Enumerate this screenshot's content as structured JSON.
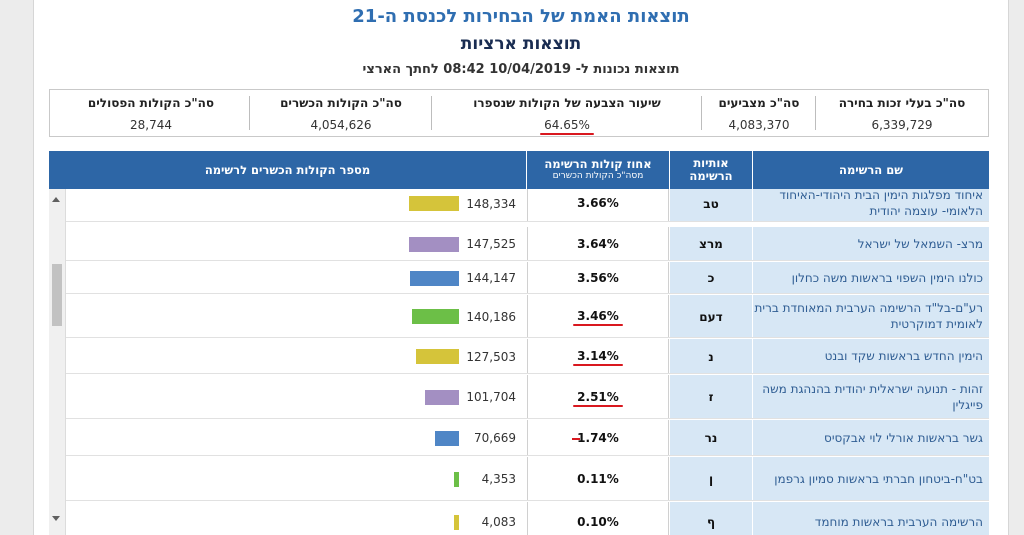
{
  "header": {
    "title": "תוצאות האמת של הבחירות לכנסת ה-21",
    "subtitle": "תוצאות ארציות",
    "updated": "תוצאות נכונות ל- 10/04/2019 08:42 לחתך הארצי"
  },
  "summary": {
    "eligible_label": "סה\"כ בעלי זכות בחירה",
    "eligible_value": "6,339,729",
    "voters_label": "סה\"כ מצביעים",
    "voters_value": "4,083,370",
    "turnout_label": "שיעור הצבעה של הקולות שנספרו",
    "turnout_value": "64.65%",
    "valid_label": "סה\"כ הקולות הכשרים",
    "valid_value": "4,054,626",
    "invalid_label": "סה\"כ הקולות הפסולים",
    "invalid_value": "28,744"
  },
  "table": {
    "col_name": "שם הרשימה",
    "col_letters": "אותיות הרשימה",
    "col_pct": "אחוז קולות הרשימה",
    "col_pct_sub": "מסה\"כ הקולות הכשרים",
    "col_votes": "מספר הקולות הכשרים לרשימה",
    "max_votes": 148334,
    "rows": [
      {
        "name": "איחוד מפלגות הימין הבית היהודי-האיחוד הלאומי- עוצמה יהודית",
        "letters": "טב",
        "pct": "3.66%",
        "votes": "148,334",
        "votes_num": 148334,
        "color": "#d5c43a",
        "underline": false,
        "dash": false
      },
      {
        "name": "מרצ- השמאל של ישראל",
        "letters": "מרצ",
        "pct": "3.64%",
        "votes": "147,525",
        "votes_num": 147525,
        "color": "#a38fc2",
        "underline": false,
        "dash": false
      },
      {
        "name": "כולנו הימין השפוי בראשות משה כחלון",
        "letters": "כ",
        "pct": "3.56%",
        "votes": "144,147",
        "votes_num": 144147,
        "color": "#4f86c6",
        "underline": false,
        "dash": false
      },
      {
        "name": "רע\"ם-בל\"ד הרשימה הערבית המאוחדת ברית לאומית דמוקרטית",
        "letters": "דעם",
        "pct": "3.46%",
        "votes": "140,186",
        "votes_num": 140186,
        "color": "#6cbf47",
        "underline": true,
        "dash": false
      },
      {
        "name": "הימין החדש בראשות שקד ובנט",
        "letters": "נ",
        "pct": "3.14%",
        "votes": "127,503",
        "votes_num": 127503,
        "color": "#d5c43a",
        "underline": true,
        "dash": false
      },
      {
        "name": "זהות - תנועה ישראלית יהודית בהנהגת משה פייגלין",
        "letters": "ז",
        "pct": "2.51%",
        "votes": "101,704",
        "votes_num": 101704,
        "color": "#a38fc2",
        "underline": true,
        "dash": false
      },
      {
        "name": "גשר בראשות אורלי לוי אבקסיס",
        "letters": "נר",
        "pct": "1.74%",
        "votes": "70,669",
        "votes_num": 70669,
        "color": "#4f86c6",
        "underline": false,
        "dash": true
      },
      {
        "name": "בט\"ח-ביטחון חברתי בראשות סמיון גרפמן",
        "letters": "ן",
        "pct": "0.11%",
        "votes": "4,353",
        "votes_num": 4353,
        "color": "#6cbf47",
        "underline": false,
        "dash": false
      },
      {
        "name": "הרשימה הערבית בראשות מוחמד",
        "letters": "ף",
        "pct": "0.10%",
        "votes": "4,083",
        "votes_num": 4083,
        "color": "#d5c43a",
        "underline": false,
        "dash": false
      }
    ]
  }
}
